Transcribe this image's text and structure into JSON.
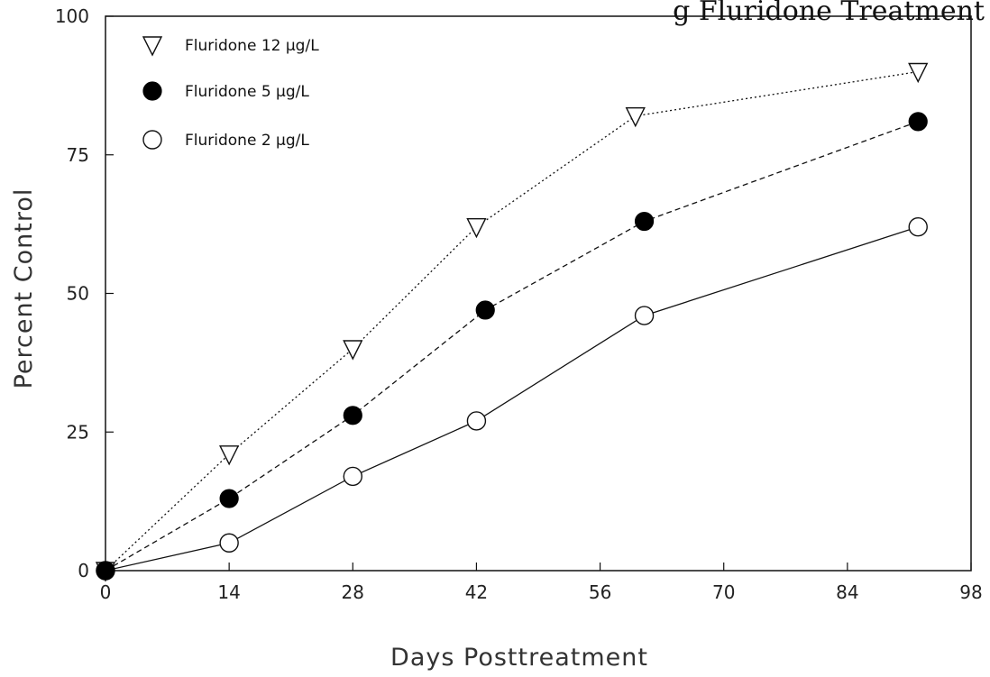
{
  "chart_data": {
    "type": "line",
    "title": "g Fluridone Treatment",
    "xlabel": "Days Posttreatment",
    "ylabel": "Percent Control",
    "xlim": [
      0,
      98
    ],
    "ylim": [
      0,
      100
    ],
    "x_ticks": [
      0,
      14,
      28,
      42,
      56,
      70,
      84,
      98
    ],
    "y_ticks": [
      0,
      25,
      50,
      75,
      100
    ],
    "x_tick_labels": [
      "0",
      "14",
      "28",
      "42",
      "56",
      "70",
      "84",
      "98"
    ],
    "y_tick_labels": [
      "0",
      "25",
      "50",
      "75",
      "100"
    ],
    "legend_position": "top-left",
    "grid": false,
    "series": [
      {
        "name": "Fluridone 12 µg/L",
        "marker": "triangle-down-open",
        "line": "dotted",
        "x": [
          0,
          14,
          28,
          42,
          60,
          92
        ],
        "y": [
          0,
          21,
          40,
          62,
          82,
          90
        ]
      },
      {
        "name": "Fluridone 5 µg/L",
        "marker": "circle-filled",
        "line": "dashed",
        "x": [
          0,
          14,
          28,
          43,
          61,
          92
        ],
        "y": [
          0,
          13,
          28,
          47,
          63,
          81
        ]
      },
      {
        "name": "Fluridone 2 µg/L",
        "marker": "circle-open",
        "line": "solid",
        "x": [
          0,
          14,
          28,
          42,
          61,
          92
        ],
        "y": [
          0,
          5,
          17,
          27,
          46,
          62
        ]
      }
    ]
  }
}
